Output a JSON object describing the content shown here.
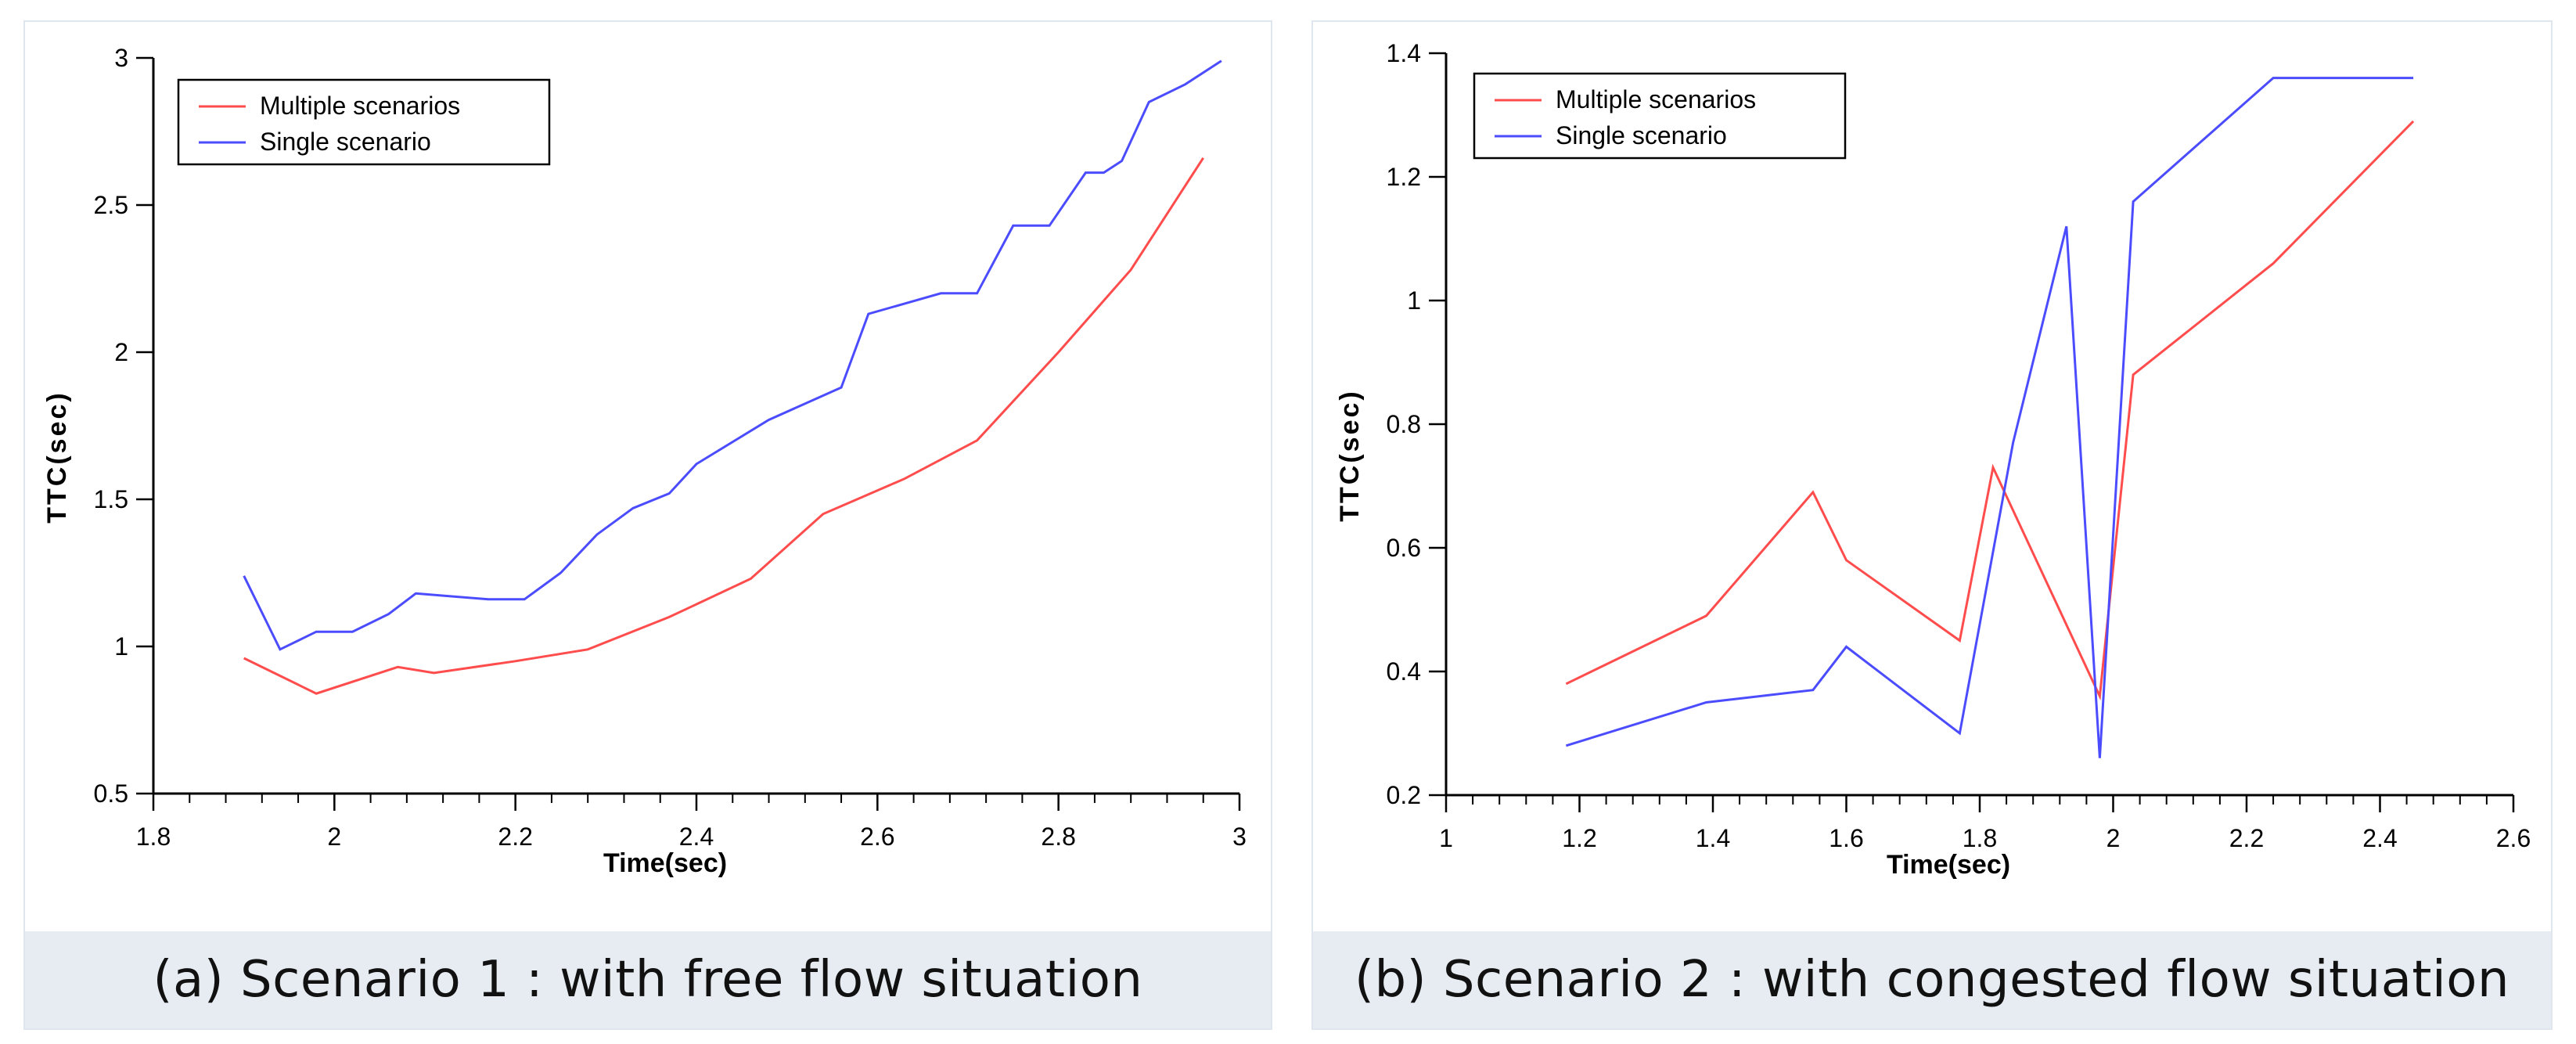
{
  "chart_data": [
    {
      "type": "line",
      "caption": "(a) Scenario 1 : with free flow situation",
      "xlabel": "Time(sec)",
      "ylabel": "TTC(sec)",
      "xlim": [
        1.8,
        3.0
      ],
      "ylim": [
        0.5,
        3.0
      ],
      "xticks": [
        1.8,
        2.0,
        2.2,
        2.4,
        2.6,
        2.8,
        3.0
      ],
      "xtick_labels": [
        "1.8",
        "2",
        "2.2",
        "2.4",
        "2.6",
        "2.8",
        "3"
      ],
      "yticks": [
        0.5,
        1.0,
        1.5,
        2.0,
        2.5,
        3.0
      ],
      "ytick_labels": [
        "0.5",
        "1",
        "1.5",
        "2",
        "2.5",
        "3"
      ],
      "minor_x_step": 0.04,
      "legend_position": "top-left",
      "series": [
        {
          "name": "Multiple scenarios",
          "color": "#ff4c4c",
          "x": [
            1.9,
            1.98,
            2.07,
            2.11,
            2.2,
            2.28,
            2.37,
            2.46,
            2.54,
            2.63,
            2.71,
            2.8,
            2.88,
            2.96
          ],
          "y": [
            0.96,
            0.84,
            0.93,
            0.91,
            0.95,
            0.99,
            1.1,
            1.23,
            1.45,
            1.57,
            1.7,
            2.0,
            2.28,
            2.66
          ]
        },
        {
          "name": "Single scenario",
          "color": "#4c4cff",
          "x": [
            1.9,
            1.94,
            1.98,
            2.02,
            2.06,
            2.09,
            2.17,
            2.21,
            2.25,
            2.29,
            2.33,
            2.37,
            2.4,
            2.48,
            2.56,
            2.59,
            2.67,
            2.71,
            2.75,
            2.79,
            2.83,
            2.85,
            2.87,
            2.9,
            2.94,
            2.98
          ],
          "y": [
            1.24,
            0.99,
            1.05,
            1.05,
            1.11,
            1.18,
            1.16,
            1.16,
            1.25,
            1.38,
            1.47,
            1.52,
            1.62,
            1.77,
            1.88,
            2.13,
            2.2,
            2.2,
            2.43,
            2.43,
            2.61,
            2.61,
            2.65,
            2.85,
            2.91,
            2.99
          ]
        }
      ]
    },
    {
      "type": "line",
      "caption": "(b) Scenario 2 : with congested flow situation",
      "xlabel": "Time(sec)",
      "ylabel": "TTC(sec)",
      "xlim": [
        1.0,
        2.6
      ],
      "ylim": [
        0.2,
        1.4
      ],
      "xticks": [
        1.0,
        1.2,
        1.4,
        1.6,
        1.8,
        2.0,
        2.2,
        2.4,
        2.6
      ],
      "xtick_labels": [
        "1",
        "1.2",
        "1.4",
        "1.6",
        "1.8",
        "2",
        "2.2",
        "2.4",
        "2.6"
      ],
      "yticks": [
        0.2,
        0.4,
        0.6,
        0.8,
        1.0,
        1.2,
        1.4
      ],
      "ytick_labels": [
        "0.2",
        "0.4",
        "0.6",
        "0.8",
        "1",
        "1.2",
        "1.4"
      ],
      "minor_x_step": 0.04,
      "legend_position": "top-left",
      "series": [
        {
          "name": "Multiple scenarios",
          "color": "#ff4c4c",
          "x": [
            1.18,
            1.39,
            1.55,
            1.6,
            1.77,
            1.82,
            1.98,
            2.03,
            2.24,
            2.45
          ],
          "y": [
            0.38,
            0.49,
            0.69,
            0.58,
            0.45,
            0.73,
            0.36,
            0.88,
            1.06,
            1.29
          ]
        },
        {
          "name": "Single scenario",
          "color": "#4c4cff",
          "x": [
            1.18,
            1.39,
            1.55,
            1.6,
            1.77,
            1.85,
            1.93,
            1.98,
            2.03,
            2.24,
            2.45
          ],
          "y": [
            0.28,
            0.35,
            0.37,
            0.44,
            0.3,
            0.77,
            1.12,
            0.26,
            1.16,
            1.36,
            1.36
          ]
        }
      ]
    }
  ]
}
